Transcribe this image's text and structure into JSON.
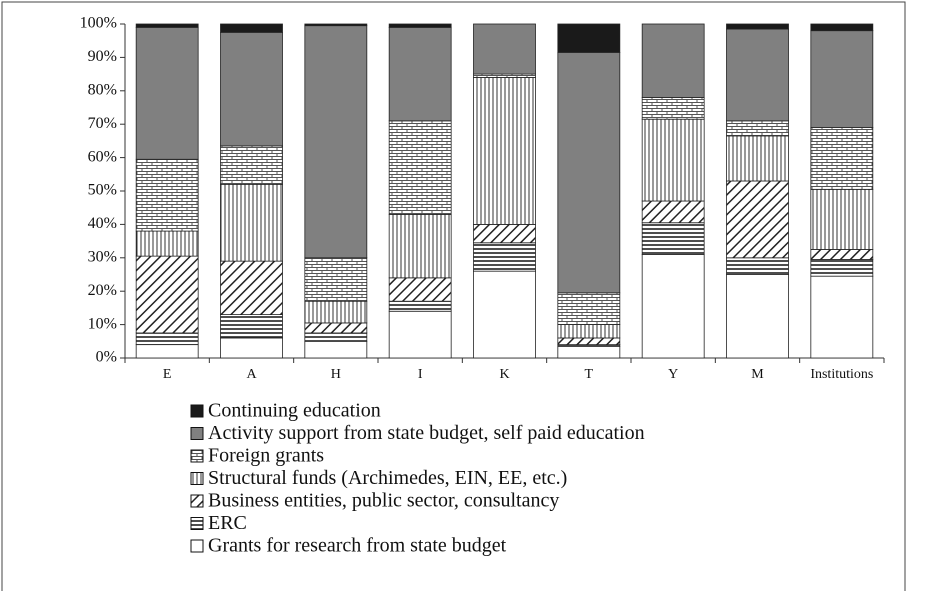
{
  "chart_data": {
    "type": "stacked_bar_100",
    "categories": [
      "E",
      "A",
      "H",
      "I",
      "K",
      "T",
      "Y",
      "M",
      "Institutions"
    ],
    "ylim": [
      0,
      100
    ],
    "yticks": [
      {
        "value": 0,
        "label": "0%"
      },
      {
        "value": 10,
        "label": "10%"
      },
      {
        "value": 20,
        "label": "20%"
      },
      {
        "value": 30,
        "label": "30%"
      },
      {
        "value": 40,
        "label": "40%"
      },
      {
        "value": 50,
        "label": "50%"
      },
      {
        "value": 60,
        "label": "60%"
      },
      {
        "value": 70,
        "label": "70%"
      },
      {
        "value": 80,
        "label": "80%"
      },
      {
        "value": 90,
        "label": "90%"
      },
      {
        "value": 100,
        "label": "100%"
      }
    ],
    "series": [
      {
        "name": "Grants for research from state budget",
        "color": "#ffffff",
        "pattern": "solid",
        "values": [
          4,
          6,
          5,
          14,
          26,
          3.5,
          31,
          25,
          24.5
        ]
      },
      {
        "name": "ERC",
        "color": "#ffffff",
        "pattern": "hlines",
        "values": [
          3.5,
          7,
          2.5,
          3,
          8.5,
          0.5,
          9.5,
          5,
          5
        ]
      },
      {
        "name": "Business entities, public sector,  consultancy",
        "color": "#ffffff",
        "pattern": "diagonal",
        "values": [
          23,
          16,
          3,
          7,
          5.5,
          2,
          6.5,
          23,
          3
        ]
      },
      {
        "name": "Structural funds (Archimedes, EIN, EE, etc.)",
        "color": "#ffffff",
        "pattern": "vlines",
        "values": [
          7.5,
          23,
          6.5,
          19,
          44,
          4,
          24.5,
          13.5,
          18
        ]
      },
      {
        "name": "Foreign grants",
        "color": "#ffffff",
        "pattern": "brick",
        "values": [
          21.5,
          11.5,
          13,
          28,
          1,
          9.5,
          6.5,
          4.5,
          18.5
        ]
      },
      {
        "name": "Activity support from state budget, self paid education",
        "color": "#808080",
        "pattern": "solid",
        "values": [
          39.5,
          34,
          69.5,
          28,
          15,
          72,
          22,
          27.5,
          29
        ]
      },
      {
        "name": "Continuing education",
        "color": "#1a1a1a",
        "pattern": "solid",
        "values": [
          1,
          2.5,
          0.5,
          1,
          0,
          8.5,
          0,
          1.5,
          2
        ]
      }
    ]
  }
}
